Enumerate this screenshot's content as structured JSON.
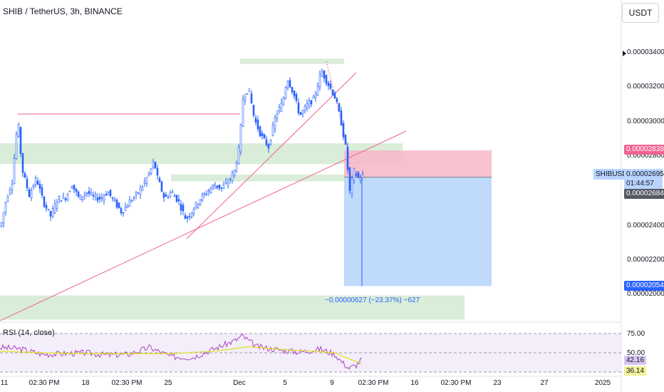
{
  "header": {
    "title": "SHIB / TetherUS, 3h, BINANCE",
    "currency": "USDT"
  },
  "price_axis": {
    "ticks": [
      "0.00003400",
      "0.00003200",
      "0.00003000",
      "0.00002800",
      "0.00002400",
      "0.00002200",
      "0.00002000"
    ],
    "tags": {
      "stop": "0.00002839",
      "symbol": "SHIBUSDT",
      "current": "0.00002695",
      "countdown": "01:44:57",
      "entry": "0.00002684",
      "target": "0.00002054"
    }
  },
  "measure_label": "−0.00000627 (−23.37%) −627",
  "rsi": {
    "title": "RSI (14, close)",
    "ticks": [
      "75.00",
      "50.00"
    ],
    "value_tag": "42.16",
    "ma_tag": "36.14"
  },
  "time_axis": [
    "11",
    "02:30 PM",
    "18",
    "02:30 PM",
    "25",
    "Dec",
    "5",
    "9",
    "02:30 PM",
    "16",
    "02:30 PM",
    "23",
    "27",
    "2025"
  ],
  "colors": {
    "up_candle": "#2962ff",
    "down_candle": "#2962ff",
    "stop_zone": "#f7b6c8",
    "target_zone": "#b9d6fb",
    "support_zone": "#cfe9cf",
    "trendline": "#f06292",
    "rsi_line": "#ab47bc",
    "rsi_ma": "#e3e01c",
    "stop_tag": "#f06292",
    "entry_tag": "#545863",
    "target_tag": "#2962ff",
    "rsi_value_tag": "#d7c5f0",
    "rsi_ma_tag": "#f3f19a"
  },
  "chart_data": {
    "type": "candlestick",
    "title": "SHIB / TetherUS, 3h, BINANCE",
    "ylim": [
      1.9e-05,
      3.5e-05
    ],
    "y_ticks": [
      3.4e-05,
      3.2e-05,
      3e-05,
      2.8e-05,
      2.4e-05,
      2.2e-05,
      2e-05
    ],
    "trajectory": [
      [
        0,
        2.4e-05
      ],
      [
        8,
        2.56e-05
      ],
      [
        16,
        2.66e-05
      ],
      [
        24,
        3.02e-05
      ],
      [
        30,
        2.73e-05
      ],
      [
        40,
        2.58e-05
      ],
      [
        50,
        2.68e-05
      ],
      [
        60,
        2.54e-05
      ],
      [
        70,
        2.46e-05
      ],
      [
        80,
        2.56e-05
      ],
      [
        90,
        2.56e-05
      ],
      [
        100,
        2.64e-05
      ],
      [
        110,
        2.56e-05
      ],
      [
        120,
        2.6e-05
      ],
      [
        130,
        2.57e-05
      ],
      [
        140,
        2.56e-05
      ],
      [
        150,
        2.6e-05
      ],
      [
        160,
        2.54e-05
      ],
      [
        170,
        2.48e-05
      ],
      [
        180,
        2.54e-05
      ],
      [
        190,
        2.58e-05
      ],
      [
        200,
        2.64e-05
      ],
      [
        210,
        2.72e-05
      ],
      [
        215,
        2.78e-05
      ],
      [
        220,
        2.68e-05
      ],
      [
        230,
        2.56e-05
      ],
      [
        240,
        2.6e-05
      ],
      [
        250,
        2.54e-05
      ],
      [
        260,
        2.44e-05
      ],
      [
        270,
        2.5e-05
      ],
      [
        280,
        2.56e-05
      ],
      [
        290,
        2.6e-05
      ],
      [
        300,
        2.64e-05
      ],
      [
        310,
        2.62e-05
      ],
      [
        320,
        2.66e-05
      ],
      [
        328,
        2.72e-05
      ],
      [
        335,
        2.86e-05
      ],
      [
        340,
        3.14e-05
      ],
      [
        348,
        3.2e-05
      ],
      [
        356,
        3.02e-05
      ],
      [
        366,
        2.92e-05
      ],
      [
        376,
        2.86e-05
      ],
      [
        386,
        3.04e-05
      ],
      [
        396,
        3.12e-05
      ],
      [
        402,
        3.26e-05
      ],
      [
        410,
        3.18e-05
      ],
      [
        420,
        3.04e-05
      ],
      [
        430,
        3.1e-05
      ],
      [
        440,
        3.14e-05
      ],
      [
        450,
        3.3e-05
      ],
      [
        460,
        3.22e-05
      ],
      [
        470,
        3.14e-05
      ],
      [
        478,
        3e-05
      ],
      [
        484,
        2.86e-05
      ],
      [
        490,
        2.6e-05
      ],
      [
        496,
        2.72e-05
      ],
      [
        502,
        2.68e-05
      ],
      [
        508,
        2.695e-05
      ]
    ],
    "support_zones": [
      {
        "from": 2.88e-05,
        "to": 2.76e-05
      },
      {
        "from": 2.7e-05,
        "to": 2.66e-05
      },
      {
        "from": 3.37e-05,
        "to": 3.34e-05
      },
      {
        "from": 2e-05,
        "to": 1.86e-05
      }
    ],
    "position": {
      "type": "short",
      "entry": 2.684e-05,
      "stop": 2.839e-05,
      "target": 2.054e-05,
      "change": -6.27e-06,
      "change_pct": -23.37
    },
    "rsi": {
      "period": 14,
      "value": 42.16,
      "ma": 36.14,
      "range": [
        0,
        100
      ],
      "ticks": [
        75,
        50
      ],
      "trajectory": [
        [
          0,
          57
        ],
        [
          30,
          55
        ],
        [
          60,
          48
        ],
        [
          90,
          49
        ],
        [
          120,
          50
        ],
        [
          150,
          47
        ],
        [
          180,
          48
        ],
        [
          210,
          57
        ],
        [
          240,
          45
        ],
        [
          270,
          44
        ],
        [
          300,
          55
        ],
        [
          330,
          66
        ],
        [
          340,
          72
        ],
        [
          360,
          58
        ],
        [
          390,
          54
        ],
        [
          420,
          51
        ],
        [
          450,
          55
        ],
        [
          470,
          48
        ],
        [
          480,
          38
        ],
        [
          490,
          30
        ],
        [
          500,
          34
        ],
        [
          508,
          42
        ]
      ],
      "ma_trajectory": [
        [
          0,
          52
        ],
        [
          60,
          50
        ],
        [
          120,
          49
        ],
        [
          180,
          49
        ],
        [
          240,
          49
        ],
        [
          300,
          52
        ],
        [
          350,
          58
        ],
        [
          400,
          54
        ],
        [
          440,
          52
        ],
        [
          470,
          50
        ],
        [
          490,
          42
        ],
        [
          508,
          36
        ]
      ]
    }
  }
}
